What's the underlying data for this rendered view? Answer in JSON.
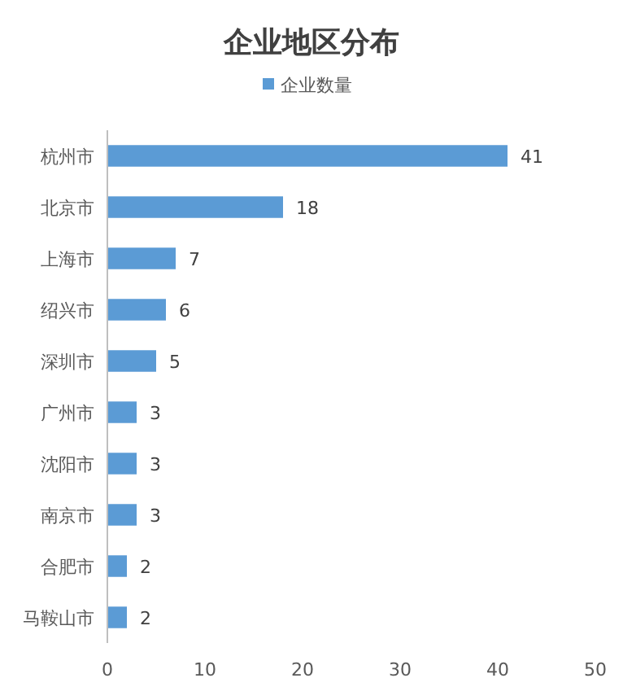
{
  "chart_data": {
    "type": "bar",
    "orientation": "horizontal",
    "title": "企业地区分布",
    "categories": [
      "杭州市",
      "北京市",
      "上海市",
      "绍兴市",
      "深圳市",
      "广州市",
      "沈阳市",
      "南京市",
      "合肥市",
      "马鞍山市"
    ],
    "series": [
      {
        "name": "企业数量",
        "color": "#5b9bd5",
        "values": [
          41,
          18,
          7,
          6,
          5,
          3,
          3,
          3,
          2,
          2
        ]
      }
    ],
    "xlim": [
      0,
      50
    ],
    "xticks": [
      0,
      10,
      20,
      30,
      40,
      50
    ],
    "data_labels": true,
    "legend": "top",
    "grid": false
  }
}
